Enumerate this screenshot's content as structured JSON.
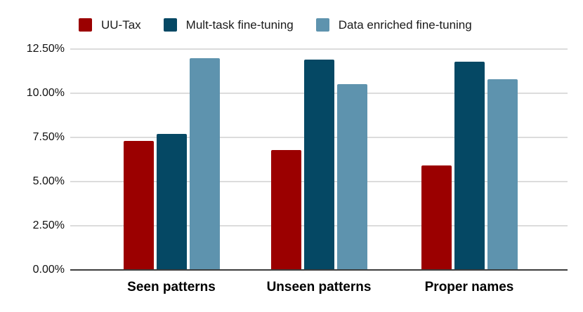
{
  "chart_data": {
    "type": "bar",
    "categories": [
      "Seen patterns",
      "Unseen patterns",
      "Proper names"
    ],
    "series": [
      {
        "name": "UU-Tax",
        "color": "#9B0000",
        "values": [
          7.3,
          6.8,
          5.9
        ]
      },
      {
        "name": "Mult-task fine-tuning",
        "color": "#054864",
        "values": [
          7.7,
          11.9,
          11.8
        ]
      },
      {
        "name": "Data enriched fine-tuning",
        "color": "#5E93AE",
        "values": [
          12.0,
          10.5,
          10.8
        ]
      }
    ],
    "y_ticks": [
      "0.00%",
      "2.50%",
      "5.00%",
      "7.50%",
      "10.00%",
      "12.50%"
    ],
    "ylim": [
      0,
      12.5
    ],
    "grid": true,
    "legend_position": "top",
    "title": "",
    "xlabel": "",
    "ylabel": ""
  },
  "colors": {
    "gridline": "#dcdcdc",
    "axis": "#3d3d3d",
    "background": "#ffffff",
    "text": "#000000"
  }
}
